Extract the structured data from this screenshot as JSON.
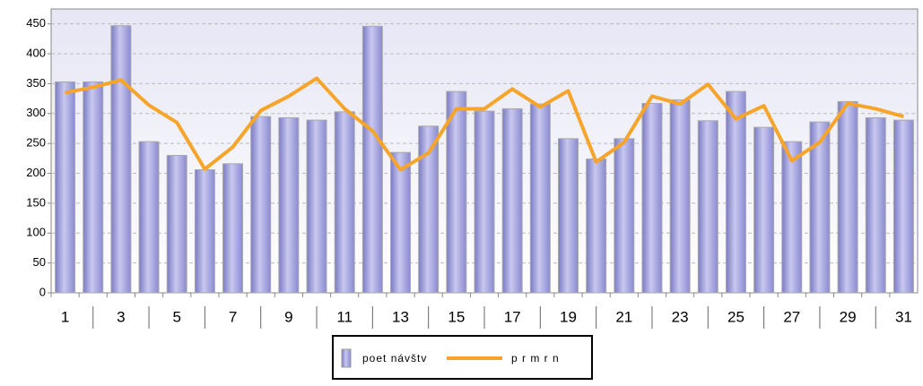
{
  "chart_data": {
    "type": "bar-line",
    "categories": [
      "1",
      null,
      "3",
      null,
      "5",
      null,
      "7",
      null,
      "9",
      null,
      "11",
      null,
      "13",
      null,
      "15",
      null,
      "17",
      null,
      "19",
      null,
      "21",
      null,
      "23",
      null,
      "25",
      null,
      "27",
      null,
      "29",
      null,
      "31"
    ],
    "series": [
      {
        "name": "poet návštv",
        "type": "bar",
        "color": "#9b9bdb",
        "values": [
          353,
          353,
          447,
          253,
          230,
          206,
          216,
          295,
          293,
          289,
          303,
          446,
          235,
          279,
          337,
          304,
          308,
          316,
          258,
          224,
          258,
          317,
          323,
          288,
          337,
          277,
          253,
          286,
          320,
          293,
          289
        ]
      },
      {
        "name": "p r m r n",
        "type": "line",
        "color": "#f6a52a",
        "values": [
          335,
          344,
          356,
          314,
          285,
          207,
          244,
          305,
          329,
          359,
          308,
          271,
          206,
          234,
          308,
          308,
          341,
          311,
          338,
          219,
          252,
          329,
          316,
          349,
          291,
          313,
          221,
          252,
          317,
          308,
          295
        ]
      }
    ],
    "ylim": [
      0,
      475
    ],
    "yticks": [
      0,
      50,
      100,
      150,
      200,
      250,
      300,
      350,
      400,
      450
    ],
    "grid": true,
    "legend": "bottom"
  }
}
